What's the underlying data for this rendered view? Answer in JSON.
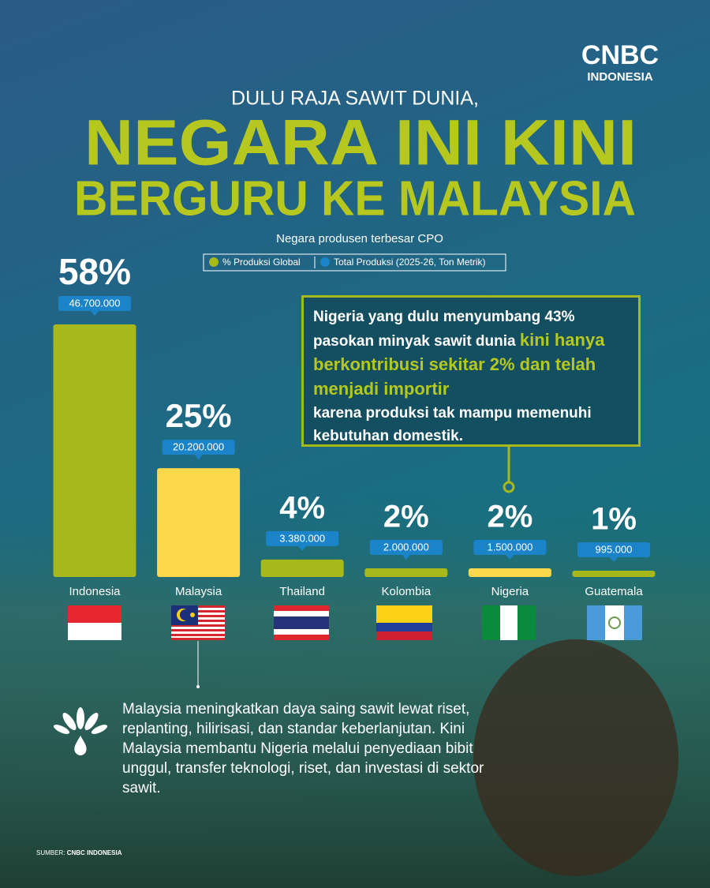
{
  "header": {
    "logo_top": "CNBC",
    "logo_bottom": "INDONESIA",
    "kicker": "DULU RAJA SAWIT DUNIA,",
    "headline_1": "NEGARA INI KINI",
    "headline_2": "BERGURU KE MALAYSIA"
  },
  "chart_data": {
    "type": "bar",
    "subtitle": "Negara produsen terbesar CPO",
    "categories": [
      "Indonesia",
      "Malaysia",
      "Thailand",
      "Kolombia",
      "Nigeria",
      "Guatemala"
    ],
    "bar_colors": [
      "#a7b81a",
      "#fcd84a",
      "#a7b81a",
      "#a7b81a",
      "#fcd84a",
      "#a7b81a"
    ],
    "series": [
      {
        "name": "% Produksi Global",
        "color": "#a7b81a",
        "values": [
          58,
          25,
          4,
          2,
          2,
          1
        ],
        "value_labels": [
          "58%",
          "25%",
          "4%",
          "2%",
          "2%",
          "1%"
        ]
      },
      {
        "name": "Total Produksi (2025-26, Ton Metrik)",
        "color": "#1b84c9",
        "values": [
          46700000,
          20200000,
          3380000,
          2000000,
          1500000,
          995000
        ],
        "value_labels": [
          "46.700.000",
          "20.200.000",
          "3.380.000",
          "2.000.000",
          "1.500.000",
          "995.000"
        ]
      }
    ]
  },
  "callout": {
    "text_1": "Nigeria yang dulu menyumbang 43% pasokan minyak sawit dunia ",
    "highlight": "kini hanya berkontribusi sekitar 2% dan telah menjadi importir",
    "text_2": "karena produksi tak mampu memenuhi kebutuhan domestik."
  },
  "note": "Malaysia meningkatkan daya saing sawit lewat riset, replanting, hilirisasi, dan standar keberlanjutan. Kini Malaysia membantu Nigeria melalui penyediaan bibit unggul, transfer teknologi, riset, dan investasi di sektor sawit.",
  "source": {
    "label": "SUMBER:",
    "name": "CNBC INDONESIA"
  }
}
